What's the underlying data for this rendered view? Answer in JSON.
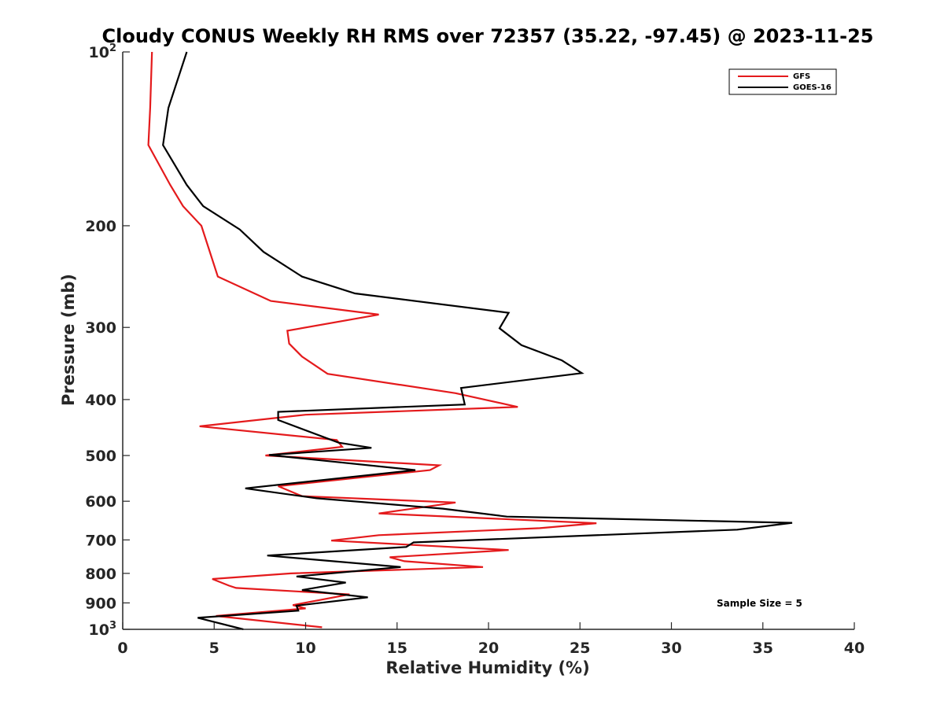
{
  "chart_data": {
    "type": "line",
    "title": "Cloudy CONUS Weekly RH RMS over 72357 (35.22, -97.45) @ 2023-11-25",
    "xlabel": "Relative Humidity (%)",
    "ylabel": "Pressure (mb)",
    "xlim": [
      0,
      40
    ],
    "ylim": [
      100,
      1000
    ],
    "y_scale": "log",
    "y_reversed": true,
    "grid": false,
    "legend_position": "top-right",
    "x_ticks": [
      "0",
      "5",
      "10",
      "15",
      "20",
      "25",
      "30",
      "35",
      "40"
    ],
    "y_ticks": [
      {
        "value": 100,
        "base": "10",
        "exp": "2"
      },
      {
        "value": 200,
        "label": "200"
      },
      {
        "value": 300,
        "label": "300"
      },
      {
        "value": 400,
        "label": "400"
      },
      {
        "value": 500,
        "label": "500"
      },
      {
        "value": 600,
        "label": "600"
      },
      {
        "value": 700,
        "label": "700"
      },
      {
        "value": 800,
        "label": "800"
      },
      {
        "value": 900,
        "label": "900"
      },
      {
        "value": 1000,
        "base": "10",
        "exp": "3"
      }
    ],
    "annotation": "Sample Size = 5",
    "series": [
      {
        "name": "GFS",
        "color": "#e41a1c",
        "points": [
          [
            1.6,
            100
          ],
          [
            1.5,
            125
          ],
          [
            1.4,
            145
          ],
          [
            2.6,
            170
          ],
          [
            3.3,
            185
          ],
          [
            4.3,
            200
          ],
          [
            5.2,
            245
          ],
          [
            8.1,
            270
          ],
          [
            14.0,
            285
          ],
          [
            9.0,
            304
          ],
          [
            9.1,
            320
          ],
          [
            9.8,
            337
          ],
          [
            11.2,
            361
          ],
          [
            18.2,
            390
          ],
          [
            21.6,
            412
          ],
          [
            10.0,
            425
          ],
          [
            4.2,
            445
          ],
          [
            11.7,
            470
          ],
          [
            12.0,
            483
          ],
          [
            7.8,
            500
          ],
          [
            17.3,
            520
          ],
          [
            16.8,
            530
          ],
          [
            8.5,
            565
          ],
          [
            9.8,
            588
          ],
          [
            18.2,
            603
          ],
          [
            14.0,
            630
          ],
          [
            25.9,
            655
          ],
          [
            22.8,
            668
          ],
          [
            14.0,
            687
          ],
          [
            11.4,
            702
          ],
          [
            21.1,
            729
          ],
          [
            14.6,
            750
          ],
          [
            15.4,
            762
          ],
          [
            19.7,
            780
          ],
          [
            9.2,
            800
          ],
          [
            4.9,
            818
          ],
          [
            5.8,
            840
          ],
          [
            6.2,
            848
          ],
          [
            12.4,
            870
          ],
          [
            9.3,
            908
          ],
          [
            10.0,
            920
          ],
          [
            5.1,
            948
          ],
          [
            10.9,
            992
          ]
        ]
      },
      {
        "name": "GOES-16",
        "color": "#000000",
        "points": [
          [
            3.5,
            100
          ],
          [
            2.5,
            125
          ],
          [
            2.2,
            145
          ],
          [
            3.5,
            170
          ],
          [
            4.4,
            185
          ],
          [
            6.4,
            203
          ],
          [
            7.7,
            222
          ],
          [
            9.8,
            245
          ],
          [
            12.7,
            262
          ],
          [
            21.1,
            283
          ],
          [
            20.6,
            301
          ],
          [
            21.8,
            322
          ],
          [
            24.0,
            342
          ],
          [
            25.1,
            360
          ],
          [
            18.5,
            382
          ],
          [
            18.7,
            408
          ],
          [
            8.5,
            420
          ],
          [
            8.5,
            434
          ],
          [
            11.8,
            475
          ],
          [
            13.6,
            485
          ],
          [
            8.0,
            499
          ],
          [
            16.0,
            530
          ],
          [
            6.7,
            570
          ],
          [
            10.6,
            593
          ],
          [
            17.5,
            618
          ],
          [
            21.0,
            638
          ],
          [
            36.6,
            654
          ],
          [
            33.6,
            672
          ],
          [
            15.9,
            707
          ],
          [
            15.5,
            720
          ],
          [
            7.9,
            745
          ],
          [
            15.2,
            780
          ],
          [
            9.5,
            810
          ],
          [
            12.2,
            830
          ],
          [
            9.8,
            855
          ],
          [
            13.4,
            880
          ],
          [
            9.5,
            910
          ],
          [
            9.6,
            928
          ],
          [
            4.1,
            955
          ],
          [
            6.6,
            1000
          ]
        ]
      }
    ]
  }
}
